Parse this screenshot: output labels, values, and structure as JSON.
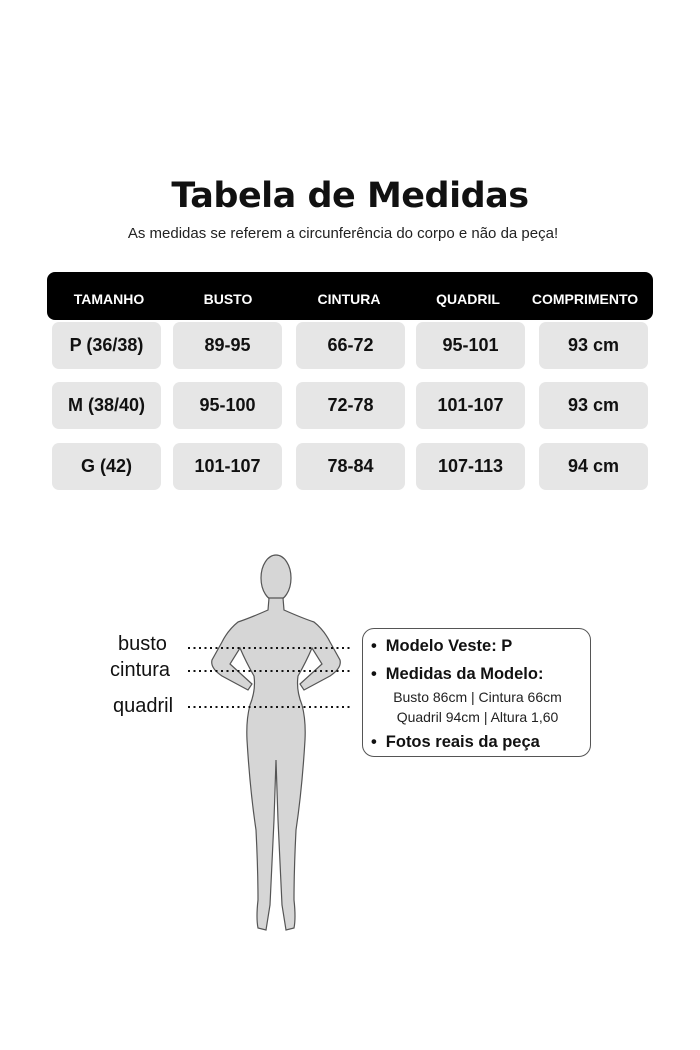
{
  "title": "Tabela de Medidas",
  "subtitle": "As medidas se referem a circunferência do corpo e não da peça!",
  "table": {
    "headers": [
      "TAMANHO",
      "BUSTO",
      "CINTURA",
      "QUADRIL",
      "COMPRIMENTO"
    ],
    "rows": [
      [
        "P (36/38)",
        "89-95",
        "66-72",
        "95-101",
        "93 cm"
      ],
      [
        "M (38/40)",
        "95-100",
        "72-78",
        "101-107",
        "93 cm"
      ],
      [
        "G (42)",
        "101-107",
        "78-84",
        "107-113",
        "94 cm"
      ]
    ]
  },
  "figure": {
    "labels": [
      "busto",
      "cintura",
      "quadril"
    ]
  },
  "info": {
    "modelo_veste": "Modelo Veste:  P",
    "medidas_title": "Medidas da Modelo:",
    "medidas_line1": "Busto 86cm | Cintura 66cm",
    "medidas_line2": "Quadril 94cm | Altura 1,60",
    "fotos": "Fotos reais da peça"
  },
  "colors": {
    "header_bg": "#000000",
    "cell_bg": "#e6e6e6",
    "figure_fill": "#d6d6d6"
  }
}
